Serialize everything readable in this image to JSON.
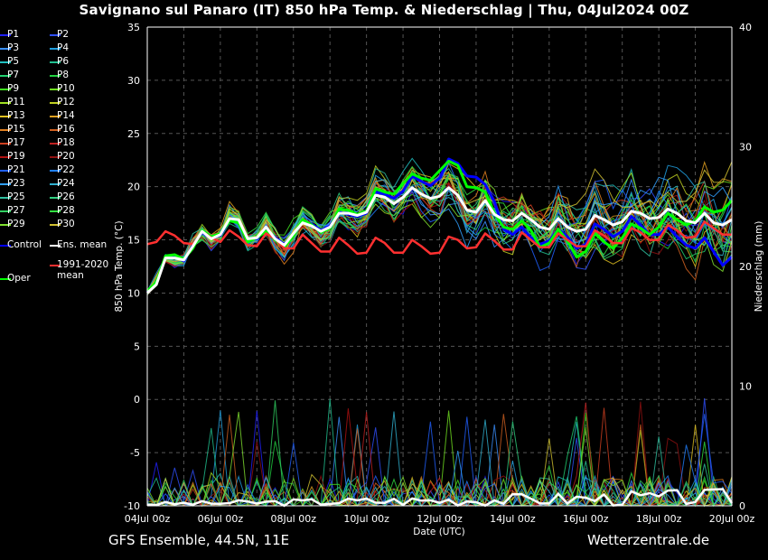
{
  "title": "Savignano sul Panaro  (IT)  850 hPa Temp. & Niederschlag | Thu, 04Jul2024 00Z",
  "footer": {
    "left": "GFS Ensemble, 44.5N, 11E",
    "right": "Wetterzentrale.de"
  },
  "chart_data": {
    "type": "line",
    "xlabel": "Date (UTC)",
    "ylabel": "850 hPa Temp. (°C)",
    "y2label": "Niederschlag (mm)",
    "ylim": [
      -10,
      35
    ],
    "y2lim": [
      0,
      40
    ],
    "x_ticks": [
      "04Jul 00z",
      "06Jul 00z",
      "08Jul 00z",
      "10Jul 00z",
      "12Jul 00z",
      "14Jul 00z",
      "16Jul 00z",
      "18Jul 00z",
      "20Jul 00z"
    ],
    "y_ticks": [
      -10,
      -5,
      0,
      5,
      10,
      15,
      20,
      25,
      30,
      35
    ],
    "y2_ticks": [
      0,
      10,
      20,
      30,
      40
    ],
    "grid": true,
    "legend_placement": "left",
    "legend": [
      {
        "name": "P1",
        "color": "#2020ff"
      },
      {
        "name": "P2",
        "color": "#3050ff"
      },
      {
        "name": "P3",
        "color": "#3a90ff"
      },
      {
        "name": "P4",
        "color": "#20a0e0"
      },
      {
        "name": "P5",
        "color": "#20c0c0"
      },
      {
        "name": "P6",
        "color": "#20c090"
      },
      {
        "name": "P7",
        "color": "#20d070"
      },
      {
        "name": "P8",
        "color": "#20d040"
      },
      {
        "name": "P9",
        "color": "#40e020"
      },
      {
        "name": "P10",
        "color": "#70e020"
      },
      {
        "name": "P11",
        "color": "#a0e020"
      },
      {
        "name": "P12",
        "color": "#c0d020"
      },
      {
        "name": "P13",
        "color": "#e0c020"
      },
      {
        "name": "P14",
        "color": "#e0a020"
      },
      {
        "name": "P15",
        "color": "#e08020"
      },
      {
        "name": "P16",
        "color": "#d06020"
      },
      {
        "name": "P17",
        "color": "#d04020"
      },
      {
        "name": "P18",
        "color": "#c02020"
      },
      {
        "name": "P19",
        "color": "#b01010"
      },
      {
        "name": "P20",
        "color": "#901010"
      },
      {
        "name": "P21",
        "color": "#2060ff"
      },
      {
        "name": "P22",
        "color": "#2080ff"
      },
      {
        "name": "P23",
        "color": "#30a0ff"
      },
      {
        "name": "P24",
        "color": "#30b0d0"
      },
      {
        "name": "P25",
        "color": "#30c0a0"
      },
      {
        "name": "P26",
        "color": "#30d080"
      },
      {
        "name": "P27",
        "color": "#30d060"
      },
      {
        "name": "P28",
        "color": "#30e040"
      },
      {
        "name": "P29",
        "color": "#80e030"
      },
      {
        "name": "P30",
        "color": "#d0c030"
      },
      {
        "name": "Control",
        "color": "#0000ff"
      },
      {
        "name": "Ens. mean",
        "color": "#ffffff"
      },
      {
        "name": "Oper",
        "color": "#00ff00"
      },
      {
        "name": "1991-2020\nmean",
        "color": "#ff3030"
      }
    ],
    "x_days": [
      0,
      0.25,
      0.5,
      0.75,
      1,
      1.25,
      1.5,
      1.75,
      2,
      2.25,
      2.5,
      2.75,
      3,
      3.25,
      3.5,
      3.75,
      4,
      4.25,
      4.5,
      4.75,
      5,
      5.25,
      5.5,
      5.75,
      6,
      6.25,
      6.5,
      6.75,
      7,
      7.25,
      7.5,
      7.75,
      8,
      8.25,
      8.5,
      8.75,
      9,
      9.25,
      9.5,
      9.75,
      10,
      10.25,
      10.5,
      10.75,
      11,
      11.25,
      11.5,
      11.75,
      12,
      12.25,
      12.5,
      12.75,
      13,
      13.25,
      13.5,
      13.75,
      14,
      14.25,
      14.5,
      14.75,
      15,
      15.25,
      15.5,
      15.75,
      16
    ],
    "series": [
      {
        "name": "Ens. mean",
        "color": "#ffffff",
        "values": [
          10,
          10.8,
          13.3,
          13.3,
          13.1,
          14.4,
          15.8,
          15.1,
          15.5,
          17,
          16.9,
          15.1,
          15.2,
          16.2,
          15.1,
          14.5,
          15.6,
          16.6,
          16.3,
          15.8,
          16.2,
          17.5,
          17.5,
          17.3,
          17.6,
          19.2,
          19,
          18.4,
          19,
          19.9,
          19.3,
          18.9,
          19.1,
          19.9,
          19.2,
          17.8,
          17.6,
          18.7,
          17.4,
          16.9,
          16.8,
          17.5,
          16.9,
          16.2,
          16,
          17,
          16.2,
          15.8,
          16,
          17.3,
          16.9,
          16.4,
          16.7,
          17.7,
          17.5,
          17,
          17.1,
          17.9,
          17.5,
          16.8,
          16.6,
          17.5,
          16.6,
          16.4,
          16.9
        ]
      },
      {
        "name": "Oper",
        "color": "#00ff00",
        "values": [
          10.2,
          11,
          13.5,
          13.6,
          13.2,
          14.2,
          15.9,
          15.3,
          15.6,
          16.8,
          16.6,
          14.8,
          15.2,
          15.8,
          15,
          14.3,
          15.4,
          16.9,
          16.4,
          15.7,
          16.1,
          17.9,
          17.8,
          17.4,
          17.7,
          19.8,
          19.5,
          19.3,
          20.3,
          21.2,
          20.8,
          20.6,
          21.5,
          22.4,
          22,
          20,
          19.9,
          19.5,
          17.5,
          16.2,
          16,
          16.8,
          15.9,
          14.3,
          14.7,
          16,
          14.9,
          13.4,
          13.9,
          15.6,
          14.8,
          14.2,
          15.2,
          16.5,
          16.1,
          15.5,
          16.2,
          17.5,
          16.9,
          16.4,
          16.8,
          18.1,
          17.6,
          17.8,
          18.7
        ]
      },
      {
        "name": "Control",
        "color": "#0000ff",
        "values": [
          10.1,
          10.9,
          13.4,
          13.5,
          13,
          14.5,
          15.7,
          15.2,
          15.4,
          16.9,
          16.8,
          15,
          15.1,
          16,
          15.2,
          14.6,
          15.5,
          16.7,
          16.5,
          15.9,
          16.3,
          17.6,
          17.4,
          17.2,
          17.5,
          19.5,
          19.3,
          18.9,
          19.6,
          21,
          20.5,
          20.1,
          20.8,
          22.6,
          22.2,
          21,
          20.9,
          20.2,
          18.6,
          16,
          15.5,
          16.2,
          15.2,
          14.6,
          14.9,
          16,
          15.3,
          14.2,
          14.6,
          16.5,
          16,
          15.3,
          15.8,
          17.2,
          16.4,
          15.5,
          15.5,
          16.2,
          15.3,
          14.5,
          14.2,
          15.2,
          13.9,
          12.6,
          13.4
        ]
      },
      {
        "name": "1991-2020 mean",
        "color": "#ff3030",
        "values": [
          14.6,
          14.8,
          15.8,
          15.4,
          14.7,
          14.6,
          15.8,
          15.2,
          14.8,
          15.9,
          15.3,
          14.5,
          14.4,
          15.6,
          15.1,
          14.2,
          14.2,
          15.5,
          14.7,
          13.9,
          13.9,
          15.2,
          14.5,
          13.7,
          13.8,
          15.2,
          14.7,
          13.8,
          13.8,
          15,
          14.4,
          13.7,
          13.8,
          15.3,
          15,
          14.2,
          14.3,
          15.6,
          14.9,
          14.1,
          14.1,
          15.7,
          15,
          14.3,
          14.3,
          15.6,
          15,
          14.4,
          14.4,
          15.9,
          15.4,
          14.7,
          14.7,
          16.1,
          15.7,
          15,
          15,
          16.4,
          15.9,
          15.2,
          15.3,
          16.7,
          16.1,
          15.5,
          15.5
        ]
      }
    ]
  }
}
